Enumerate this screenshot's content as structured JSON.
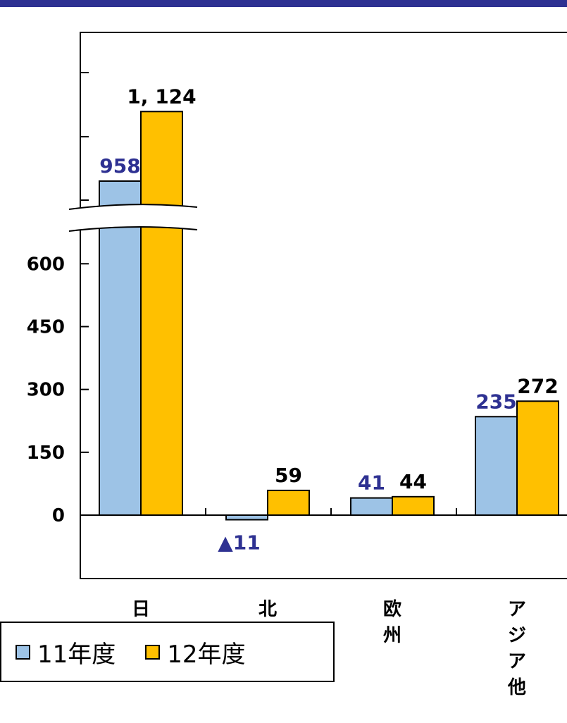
{
  "chart_data": {
    "type": "bar",
    "categories": [
      "日本",
      "北米",
      "欧州",
      "アジア他"
    ],
    "series": [
      {
        "name": "11年度",
        "values": [
          958,
          -11,
          41,
          235
        ],
        "labels": [
          "958",
          "▲11",
          "41",
          "235"
        ],
        "color": "#9dc3e6",
        "label_color": "#2e3192"
      },
      {
        "name": "12年度",
        "values": [
          1124,
          59,
          44,
          272
        ],
        "labels": [
          "1, 124",
          "59",
          "44",
          "272"
        ],
        "color": "#ffc000",
        "label_color": "#000000"
      }
    ],
    "yticks": [
      "0",
      "150",
      "300",
      "450",
      "600"
    ],
    "ylim": [
      -150,
      750
    ],
    "axis_break": true,
    "legend_position": "bottom-left"
  }
}
